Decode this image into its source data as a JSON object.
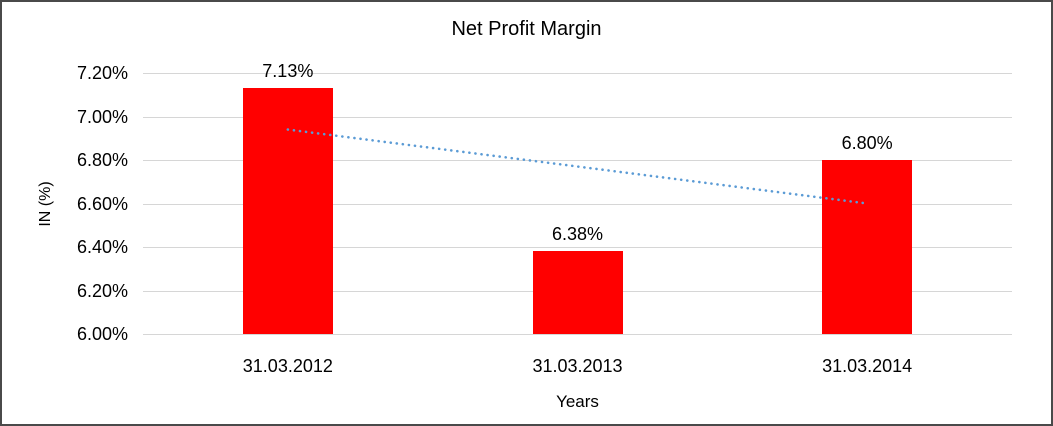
{
  "chart_data": {
    "type": "bar",
    "title": "Net Profit Margin",
    "xlabel": "Years",
    "ylabel": "IN (%)",
    "categories": [
      "31.03.2012",
      "31.03.2013",
      "31.03.2014"
    ],
    "values": [
      7.13,
      6.38,
      6.8
    ],
    "data_labels": [
      "7.13%",
      "6.38%",
      "6.80%"
    ],
    "ylim": [
      6.0,
      7.2
    ],
    "ytick_step": 0.2,
    "ytick_labels": [
      "6.00%",
      "6.20%",
      "6.40%",
      "6.60%",
      "6.80%",
      "7.00%",
      "7.20%"
    ],
    "grid": true,
    "legend_position": "none",
    "bar_color": "#ff0000",
    "gridline_color": "#d6d6d6",
    "text_color": "#000000",
    "background_color": "#ffffff",
    "frame_border_color": "#4a4a4a",
    "trendline": {
      "type": "linear",
      "style": "dotted",
      "color": "#5b9bd5",
      "start_value": 6.94,
      "end_value": 6.6
    }
  }
}
